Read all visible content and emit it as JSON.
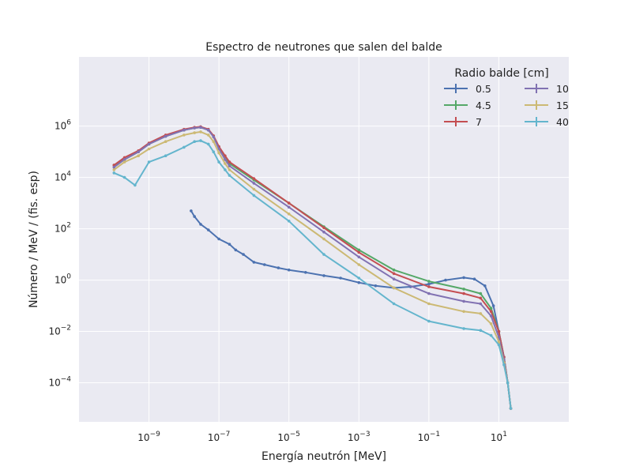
{
  "chart_data": {
    "type": "line",
    "title": "Espectro de neutrones que salen del balde",
    "xlabel": "Energía neutrón [MeV]",
    "ylabel": "Número / MeV / (fis. esp)",
    "xscale": "log",
    "yscale": "log",
    "xlim": [
      1e-11,
      1000
    ],
    "ylim": [
      3e-06,
      500000000
    ],
    "grid": true,
    "background": "#EAEAF2",
    "xticks": [
      {
        "value": 1e-09,
        "mant": "10",
        "exp": "−9"
      },
      {
        "value": 1e-07,
        "mant": "10",
        "exp": "−7"
      },
      {
        "value": 1e-05,
        "mant": "10",
        "exp": "−5"
      },
      {
        "value": 0.001,
        "mant": "10",
        "exp": "−3"
      },
      {
        "value": 0.1,
        "mant": "10",
        "exp": "−1"
      },
      {
        "value": 10,
        "mant": "10",
        "exp": "1"
      }
    ],
    "yticks": [
      {
        "value": 0.0001,
        "mant": "10",
        "exp": "−4"
      },
      {
        "value": 0.01,
        "mant": "10",
        "exp": "−2"
      },
      {
        "value": 1,
        "mant": "10",
        "exp": "0"
      },
      {
        "value": 100,
        "mant": "10",
        "exp": "2"
      },
      {
        "value": 10000,
        "mant": "10",
        "exp": "4"
      },
      {
        "value": 1000000,
        "mant": "10",
        "exp": "6"
      }
    ],
    "legend": {
      "title": "Radio balde [cm]",
      "placement": "upper right",
      "columns": 2
    },
    "series": [
      {
        "name": "0.5",
        "color": "#4C72B0",
        "points": [
          [
            1.6e-08,
            500
          ],
          [
            2e-08,
            300
          ],
          [
            3e-08,
            150
          ],
          [
            5e-08,
            90
          ],
          [
            1e-07,
            40
          ],
          [
            2e-07,
            25
          ],
          [
            3e-07,
            15
          ],
          [
            5e-07,
            10
          ],
          [
            1e-06,
            5
          ],
          [
            2e-06,
            4
          ],
          [
            5e-06,
            3
          ],
          [
            1e-05,
            2.5
          ],
          [
            3e-05,
            2
          ],
          [
            0.0001,
            1.5
          ],
          [
            0.0003,
            1.2
          ],
          [
            0.001,
            0.8
          ],
          [
            0.003,
            0.6
          ],
          [
            0.01,
            0.5
          ],
          [
            0.03,
            0.55
          ],
          [
            0.1,
            0.7
          ],
          [
            0.3,
            1.0
          ],
          [
            1,
            1.25
          ],
          [
            2,
            1.1
          ],
          [
            4,
            0.6
          ],
          [
            7,
            0.1
          ],
          [
            10,
            0.01
          ],
          [
            14,
            0.001
          ],
          [
            18,
            0.0001
          ],
          [
            22,
            1e-05
          ]
        ]
      },
      {
        "name": "4.5",
        "color": "#55A868",
        "points": [
          [
            1e-10,
            30000
          ],
          [
            2e-10,
            50000
          ],
          [
            5e-10,
            100000
          ],
          [
            1e-09,
            200000
          ],
          [
            3e-09,
            400000
          ],
          [
            1e-08,
            700000
          ],
          [
            2e-08,
            850000
          ],
          [
            3e-08,
            900000
          ],
          [
            5e-08,
            700000
          ],
          [
            7e-08,
            400000
          ],
          [
            1e-07,
            150000
          ],
          [
            1.5e-07,
            60000
          ],
          [
            2e-07,
            35000
          ],
          [
            1e-06,
            8000
          ],
          [
            1e-05,
            1000
          ],
          [
            0.0001,
            120
          ],
          [
            0.001,
            15
          ],
          [
            0.01,
            2.5
          ],
          [
            0.1,
            0.9
          ],
          [
            1,
            0.45
          ],
          [
            3,
            0.3
          ],
          [
            6,
            0.08
          ],
          [
            10,
            0.01
          ],
          [
            14,
            0.001
          ],
          [
            18,
            0.0001
          ],
          [
            22,
            1e-05
          ]
        ]
      },
      {
        "name": "7",
        "color": "#C44E52",
        "points": [
          [
            1e-10,
            30000
          ],
          [
            2e-10,
            60000
          ],
          [
            5e-10,
            110000
          ],
          [
            1e-09,
            220000
          ],
          [
            3e-09,
            450000
          ],
          [
            1e-08,
            750000
          ],
          [
            2e-08,
            900000
          ],
          [
            3e-08,
            950000
          ],
          [
            5e-08,
            750000
          ],
          [
            7e-08,
            420000
          ],
          [
            1e-07,
            160000
          ],
          [
            1.5e-07,
            70000
          ],
          [
            2e-07,
            40000
          ],
          [
            1e-06,
            9000
          ],
          [
            1e-05,
            1000
          ],
          [
            0.0001,
            110
          ],
          [
            0.001,
            12
          ],
          [
            0.01,
            1.8
          ],
          [
            0.1,
            0.55
          ],
          [
            1,
            0.3
          ],
          [
            3,
            0.2
          ],
          [
            6,
            0.06
          ],
          [
            10,
            0.01
          ],
          [
            14,
            0.001
          ],
          [
            18,
            0.0001
          ],
          [
            22,
            1e-05
          ]
        ]
      },
      {
        "name": "10",
        "color": "#8172B2",
        "points": [
          [
            1e-10,
            25000
          ],
          [
            2e-10,
            50000
          ],
          [
            5e-10,
            100000
          ],
          [
            1e-09,
            200000
          ],
          [
            3e-09,
            400000
          ],
          [
            1e-08,
            700000
          ],
          [
            2e-08,
            850000
          ],
          [
            3e-08,
            900000
          ],
          [
            5e-08,
            700000
          ],
          [
            7e-08,
            380000
          ],
          [
            1e-07,
            130000
          ],
          [
            1.5e-07,
            50000
          ],
          [
            2e-07,
            28000
          ],
          [
            1e-06,
            6000
          ],
          [
            1e-05,
            700
          ],
          [
            0.0001,
            75
          ],
          [
            0.001,
            8
          ],
          [
            0.01,
            1.1
          ],
          [
            0.1,
            0.3
          ],
          [
            1,
            0.15
          ],
          [
            3,
            0.12
          ],
          [
            6,
            0.04
          ],
          [
            10,
            0.006
          ],
          [
            14,
            0.0008
          ],
          [
            18,
            0.0001
          ],
          [
            22,
            1e-05
          ]
        ]
      },
      {
        "name": "15",
        "color": "#CCB974",
        "points": [
          [
            1e-10,
            20000
          ],
          [
            2e-10,
            40000
          ],
          [
            5e-10,
            70000
          ],
          [
            1e-09,
            130000
          ],
          [
            3e-09,
            250000
          ],
          [
            1e-08,
            450000
          ],
          [
            2e-08,
            550000
          ],
          [
            3e-08,
            600000
          ],
          [
            5e-08,
            450000
          ],
          [
            7e-08,
            250000
          ],
          [
            1e-07,
            90000
          ],
          [
            1.5e-07,
            35000
          ],
          [
            2e-07,
            20000
          ],
          [
            1e-06,
            3500
          ],
          [
            1e-05,
            380
          ],
          [
            0.0001,
            40
          ],
          [
            0.001,
            4
          ],
          [
            0.01,
            0.5
          ],
          [
            0.1,
            0.12
          ],
          [
            1,
            0.06
          ],
          [
            3,
            0.05
          ],
          [
            6,
            0.02
          ],
          [
            10,
            0.004
          ],
          [
            14,
            0.0006
          ],
          [
            18,
            0.0001
          ],
          [
            22,
            1e-05
          ]
        ]
      },
      {
        "name": "40",
        "color": "#64B5CD",
        "points": [
          [
            1e-10,
            15000
          ],
          [
            2e-10,
            10000
          ],
          [
            4e-10,
            5000
          ],
          [
            1e-09,
            40000
          ],
          [
            3e-09,
            70000
          ],
          [
            1e-08,
            150000
          ],
          [
            2e-08,
            250000
          ],
          [
            3e-08,
            270000
          ],
          [
            5e-08,
            200000
          ],
          [
            7e-08,
            100000
          ],
          [
            1e-07,
            40000
          ],
          [
            1.5e-07,
            20000
          ],
          [
            2e-07,
            12000
          ],
          [
            1e-06,
            2000
          ],
          [
            1e-05,
            200
          ],
          [
            0.0001,
            10
          ],
          [
            0.001,
            1.2
          ],
          [
            0.01,
            0.12
          ],
          [
            0.1,
            0.025
          ],
          [
            1,
            0.013
          ],
          [
            3,
            0.011
          ],
          [
            6,
            0.007
          ],
          [
            10,
            0.003
          ],
          [
            14,
            0.0005
          ],
          [
            18,
            0.0001
          ],
          [
            22,
            1e-05
          ]
        ]
      }
    ]
  }
}
